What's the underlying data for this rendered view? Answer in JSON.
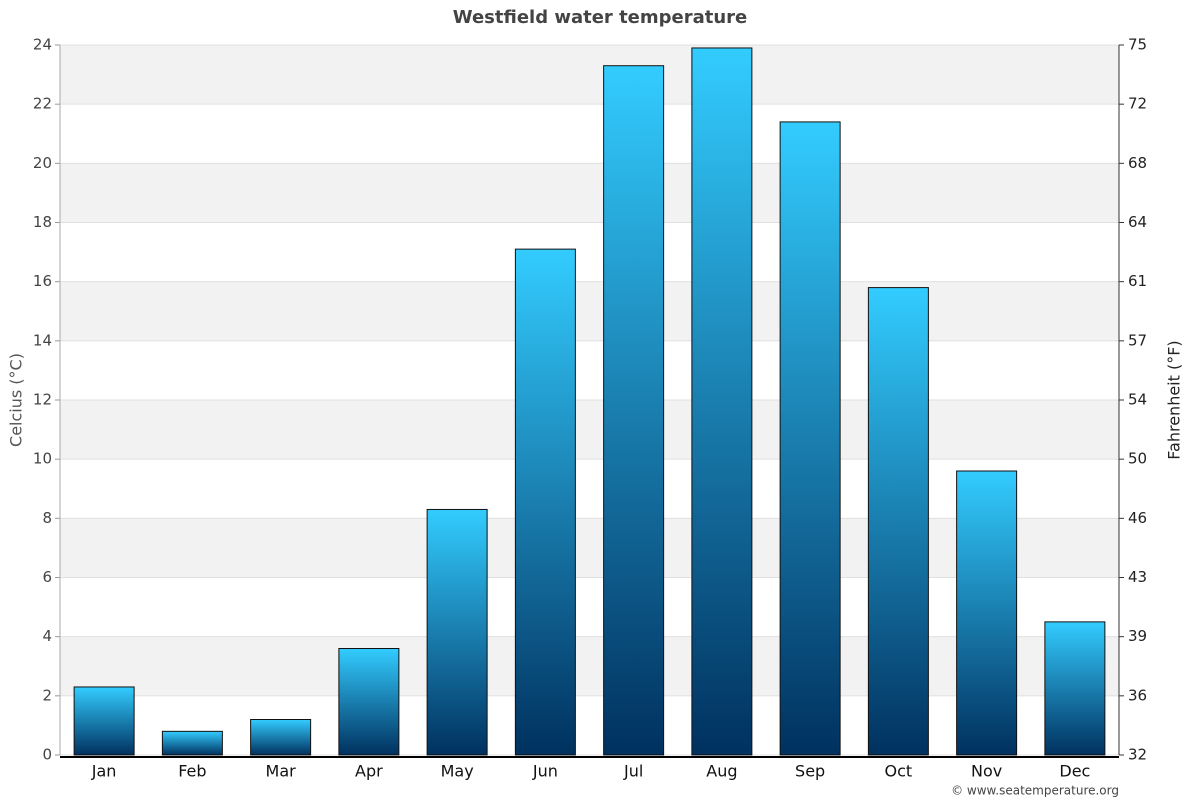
{
  "chart_data": {
    "type": "bar",
    "title": "Westfield water temperature",
    "categories": [
      "Jan",
      "Feb",
      "Mar",
      "Apr",
      "May",
      "Jun",
      "Jul",
      "Aug",
      "Sep",
      "Oct",
      "Nov",
      "Dec"
    ],
    "values": [
      2.3,
      0.8,
      1.2,
      3.6,
      8.3,
      17.1,
      23.3,
      23.9,
      21.4,
      15.8,
      9.6,
      4.5
    ],
    "gradient": [
      "#33ccff",
      "#00315f"
    ],
    "y_label": "Celcius (°C)",
    "y2_label": "Fahrenheit (°F)",
    "ylim": [
      0,
      24
    ],
    "yticks": [
      0,
      2,
      4,
      6,
      8,
      10,
      12,
      14,
      16,
      18,
      20,
      22,
      24
    ],
    "y2lim": [
      32,
      75.2
    ],
    "y2ticks": [
      32,
      {
        "value": 35.6,
        "label": "36"
      },
      {
        "value": 39.2,
        "label": "39"
      },
      {
        "value": 42.8,
        "label": "43"
      },
      {
        "value": 46.4,
        "label": "46"
      },
      50,
      {
        "value": 53.6,
        "label": "54"
      },
      {
        "value": 57.2,
        "label": "57"
      },
      {
        "value": 60.8,
        "label": "61"
      },
      {
        "value": 64.4,
        "label": "64"
      },
      68,
      {
        "value": 71.6,
        "label": "72"
      },
      {
        "value": 75.2,
        "label": "75"
      }
    ],
    "grid": true,
    "credit": "© www.seatemperature.org"
  }
}
